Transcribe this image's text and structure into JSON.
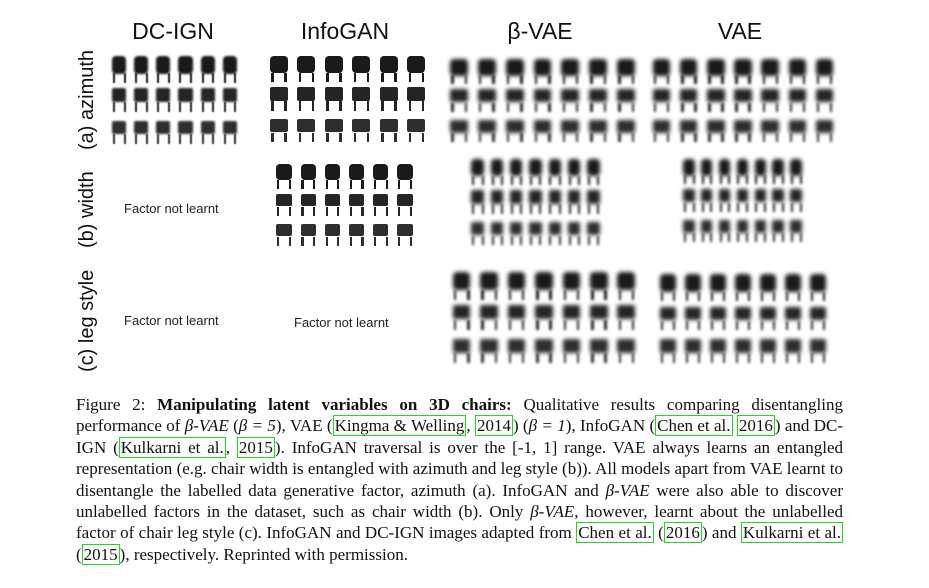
{
  "figure": {
    "columns": [
      "DC-IGN",
      "InfoGAN",
      "β-VAE",
      "VAE"
    ],
    "rows": [
      "(a) azimuth",
      "(b) width",
      "(c) leg style"
    ],
    "not_learnt_label": "Factor not learnt"
  },
  "caption": {
    "prefix": "Figure 2:",
    "bold_title": "Manipulating latent variables on 3D chairs:",
    "t1": " Qualitative results comparing disentangling performance of ",
    "beta_vae": "β-VAE",
    "t2": " (",
    "beta5": "β = 5",
    "t3": "), VAE (",
    "cite_kingma": "Kingma & Welling",
    "t4": ", ",
    "cite_2014": "2014",
    "t5": ") (",
    "beta1": "β = 1",
    "t6": "), InfoGAN (",
    "cite_chen": "Chen et al.",
    "t7": " ",
    "cite_2016": "2016",
    "t8": ") and DC-IGN (",
    "cite_kulkarni": "Kulkarni et al.",
    "t9": ", ",
    "cite_2015": "2015",
    "t10": "). InfoGAN traversal is over the [-1, 1] range. VAE always learns an entangled representation (e.g. chair width is entangled with azimuth and leg style (b)). All models apart from VAE learnt to disentangle the labelled data generative factor, azimuth (a). InfoGAN and ",
    "beta_vae2": "β-VAE",
    "t11": " were also able to discover unlabelled factors in the dataset, such as chair width (b). Only ",
    "beta_vae3": "β-VAE",
    "t12": ", however, learnt about the unlabelled factor of chair leg style (c). InfoGAN and DC-IGN images adapted from ",
    "cite_chen2": "Chen et al.",
    "t13": " (",
    "cite_2016b": "2016",
    "t14": ") and ",
    "cite_kulkarni2": "Kulkarni et al.",
    "t15": " (",
    "cite_2015b": "2015",
    "t16": "), respectively. Reprinted with permission."
  }
}
